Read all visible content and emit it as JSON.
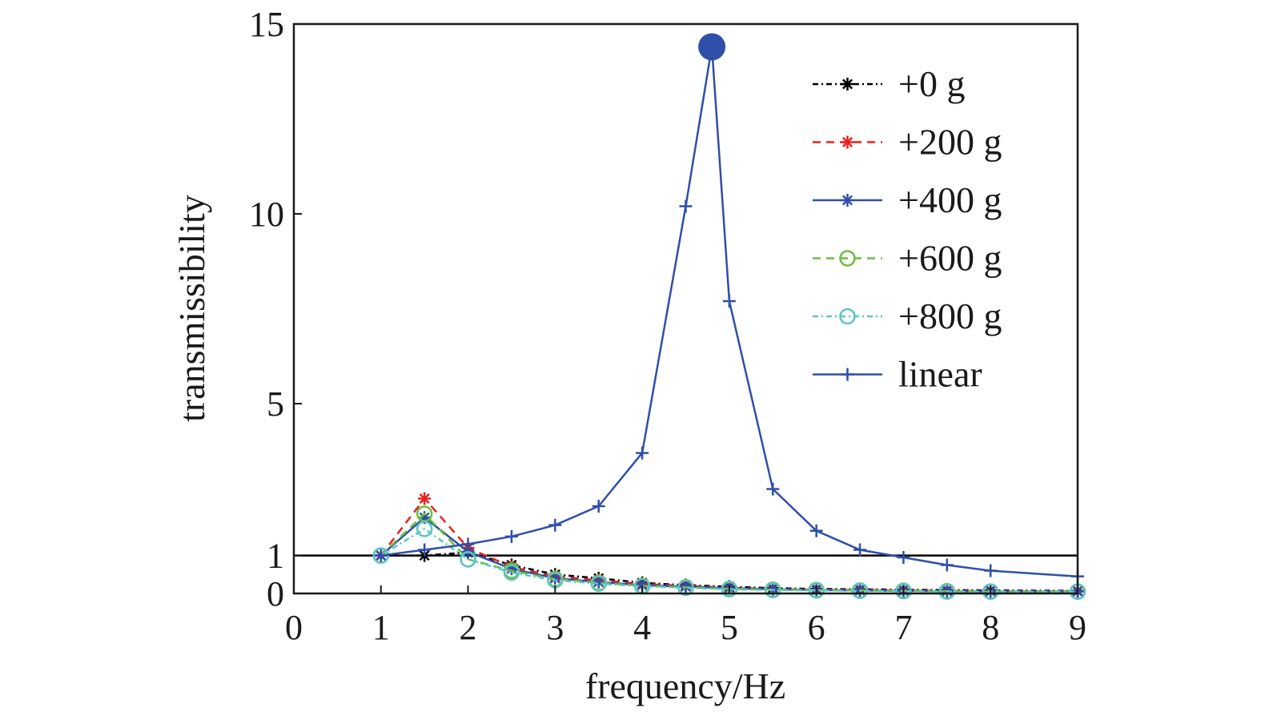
{
  "chart_data": {
    "type": "line",
    "xlabel": "frequency/Hz",
    "ylabel": "transmissibility",
    "xlim": [
      0,
      9
    ],
    "ylim": [
      0,
      15
    ],
    "xticks": [
      0,
      1,
      2,
      3,
      4,
      5,
      6,
      7,
      8,
      9
    ],
    "yticks": [
      0,
      1,
      5,
      10,
      15
    ],
    "reference_line": {
      "y": 1,
      "color": "#000000"
    },
    "grid": false,
    "legend_position": "top-right",
    "series": [
      {
        "name": "+0 g",
        "color": "#000000",
        "dash": "dashdot",
        "marker": "star",
        "x": [
          1,
          1.5,
          2,
          2.5,
          3,
          3.5,
          4,
          4.5,
          5,
          5.5,
          6,
          6.5,
          7,
          7.5,
          8,
          9
        ],
        "y": [
          1.0,
          1.0,
          1.08,
          0.75,
          0.5,
          0.4,
          0.28,
          0.22,
          0.18,
          0.14,
          0.12,
          0.11,
          0.1,
          0.09,
          0.08,
          0.07
        ]
      },
      {
        "name": "+200 g",
        "color": "#e8221f",
        "dash": "dash",
        "marker": "star",
        "x": [
          1,
          1.5,
          2,
          2.5,
          3,
          3.5,
          4,
          4.5,
          5,
          5.5,
          6,
          6.5,
          7,
          7.5,
          8,
          9
        ],
        "y": [
          1.0,
          2.5,
          1.2,
          0.7,
          0.45,
          0.35,
          0.25,
          0.2,
          0.15,
          0.12,
          0.1,
          0.09,
          0.08,
          0.07,
          0.06,
          0.06
        ]
      },
      {
        "name": "+400 g",
        "color": "#2f4fa8",
        "dash": "solid",
        "marker": "star",
        "x": [
          1,
          1.5,
          2,
          2.5,
          3,
          3.5,
          4,
          4.5,
          5,
          5.5,
          6,
          6.5,
          7,
          7.5,
          8,
          9
        ],
        "y": [
          1.0,
          2.0,
          1.1,
          0.65,
          0.4,
          0.3,
          0.22,
          0.18,
          0.14,
          0.11,
          0.09,
          0.08,
          0.07,
          0.06,
          0.05,
          0.05
        ]
      },
      {
        "name": "+600 g",
        "color": "#6abf3a",
        "dash": "dash",
        "marker": "circle",
        "x": [
          1,
          1.5,
          2,
          2.5,
          3,
          3.5,
          4,
          4.5,
          5,
          5.5,
          6,
          6.5,
          7,
          7.5,
          8,
          9
        ],
        "y": [
          1.0,
          2.1,
          0.9,
          0.6,
          0.38,
          0.28,
          0.2,
          0.16,
          0.12,
          0.1,
          0.09,
          0.08,
          0.07,
          0.06,
          0.05,
          0.05
        ]
      },
      {
        "name": "+800 g",
        "color": "#5bc4c7",
        "dash": "dashdot",
        "marker": "circle",
        "x": [
          1,
          1.5,
          2,
          2.5,
          3,
          3.5,
          4,
          4.5,
          5,
          5.5,
          6,
          6.5,
          7,
          7.5,
          8,
          9
        ],
        "y": [
          1.0,
          1.7,
          0.9,
          0.55,
          0.35,
          0.26,
          0.19,
          0.15,
          0.11,
          0.09,
          0.08,
          0.07,
          0.06,
          0.05,
          0.05,
          0.05
        ]
      },
      {
        "name": "linear",
        "color": "#2f4fa8",
        "dash": "solid",
        "marker": "plus",
        "x": [
          1,
          1.5,
          2,
          2.5,
          3,
          3.5,
          4,
          4.5,
          4.8,
          5,
          5.5,
          6,
          6.5,
          7,
          7.5,
          8,
          9
        ],
        "y": [
          1.0,
          1.15,
          1.3,
          1.5,
          1.8,
          2.3,
          3.7,
          10.2,
          14.4,
          7.7,
          2.75,
          1.65,
          1.15,
          0.95,
          0.75,
          0.6,
          0.45
        ]
      }
    ],
    "highlight_point": {
      "x": 4.8,
      "y": 14.4,
      "color": "#2f4fa8"
    }
  }
}
